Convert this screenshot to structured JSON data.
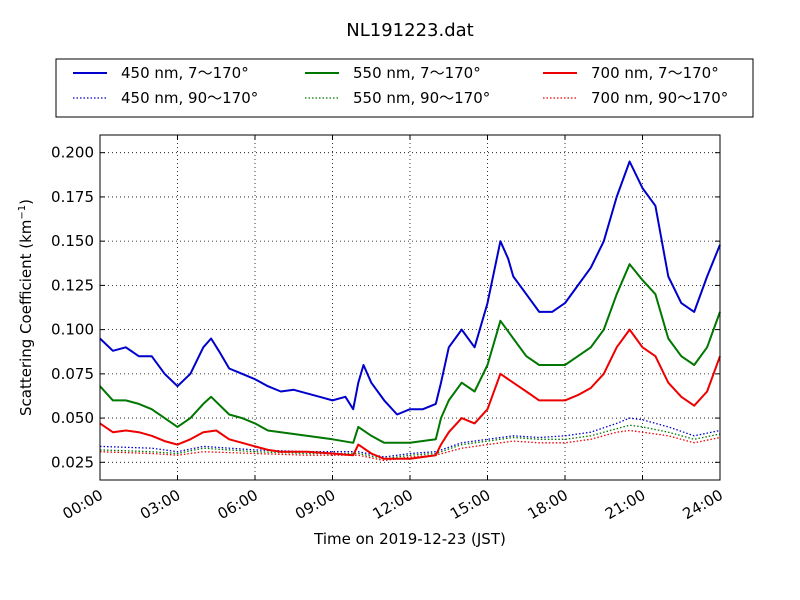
{
  "chart_data": {
    "type": "line",
    "title": "NL191223.dat",
    "xlabel": "Time on 2019-12-23 (JST)",
    "ylabel": "Scattering Coefficient (km",
    "ylabel_sup": "−1",
    "ylabel_close": ")",
    "xlim": [
      0,
      24
    ],
    "ylim": [
      0.015,
      0.21
    ],
    "x_ticks": [
      0,
      3,
      6,
      9,
      12,
      15,
      18,
      21,
      24
    ],
    "x_tick_labels": [
      "00:00",
      "03:00",
      "06:00",
      "09:00",
      "12:00",
      "15:00",
      "18:00",
      "21:00",
      "24:00"
    ],
    "y_ticks": [
      0.025,
      0.05,
      0.075,
      0.1,
      0.125,
      0.15,
      0.175,
      0.2
    ],
    "y_tick_labels": [
      "0.025",
      "0.050",
      "0.075",
      "0.100",
      "0.125",
      "0.150",
      "0.175",
      "0.200"
    ],
    "grid": true,
    "legend_position": "top",
    "series": [
      {
        "name": "450 nm, 7～170°",
        "color": "#0000cc",
        "style": "solid",
        "points": [
          [
            0,
            0.095
          ],
          [
            0.5,
            0.088
          ],
          [
            1,
            0.09
          ],
          [
            1.5,
            0.085
          ],
          [
            2,
            0.085
          ],
          [
            2.5,
            0.075
          ],
          [
            3,
            0.068
          ],
          [
            3.5,
            0.075
          ],
          [
            4,
            0.09
          ],
          [
            4.3,
            0.095
          ],
          [
            4.6,
            0.088
          ],
          [
            5,
            0.078
          ],
          [
            5.5,
            0.075
          ],
          [
            6,
            0.072
          ],
          [
            6.5,
            0.068
          ],
          [
            7,
            0.065
          ],
          [
            7.5,
            0.066
          ],
          [
            8,
            0.064
          ],
          [
            8.5,
            0.062
          ],
          [
            9,
            0.06
          ],
          [
            9.5,
            0.062
          ],
          [
            9.8,
            0.055
          ],
          [
            10,
            0.07
          ],
          [
            10.2,
            0.08
          ],
          [
            10.5,
            0.07
          ],
          [
            11,
            0.06
          ],
          [
            11.5,
            0.052
          ],
          [
            12,
            0.055
          ],
          [
            12.5,
            0.055
          ],
          [
            13,
            0.058
          ],
          [
            13.2,
            0.07
          ],
          [
            13.5,
            0.09
          ],
          [
            14,
            0.1
          ],
          [
            14.5,
            0.09
          ],
          [
            15,
            0.115
          ],
          [
            15.5,
            0.15
          ],
          [
            15.8,
            0.14
          ],
          [
            16,
            0.13
          ],
          [
            16.5,
            0.12
          ],
          [
            17,
            0.11
          ],
          [
            17.5,
            0.11
          ],
          [
            18,
            0.115
          ],
          [
            18.5,
            0.125
          ],
          [
            19,
            0.135
          ],
          [
            19.5,
            0.15
          ],
          [
            20,
            0.175
          ],
          [
            20.5,
            0.195
          ],
          [
            21,
            0.18
          ],
          [
            21.5,
            0.17
          ],
          [
            22,
            0.13
          ],
          [
            22.5,
            0.115
          ],
          [
            23,
            0.11
          ],
          [
            23.5,
            0.13
          ],
          [
            24,
            0.148
          ]
        ]
      },
      {
        "name": "450 nm, 90～170°",
        "color": "#0000cc",
        "style": "dotted",
        "points": [
          [
            0,
            0.034
          ],
          [
            2,
            0.033
          ],
          [
            3,
            0.031
          ],
          [
            4,
            0.034
          ],
          [
            6,
            0.032
          ],
          [
            8,
            0.031
          ],
          [
            10,
            0.031
          ],
          [
            11,
            0.028
          ],
          [
            12,
            0.03
          ],
          [
            13,
            0.031
          ],
          [
            14,
            0.036
          ],
          [
            15,
            0.038
          ],
          [
            16,
            0.04
          ],
          [
            17,
            0.039
          ],
          [
            18,
            0.04
          ],
          [
            19,
            0.042
          ],
          [
            20,
            0.047
          ],
          [
            20.5,
            0.05
          ],
          [
            21,
            0.049
          ],
          [
            22,
            0.045
          ],
          [
            23,
            0.04
          ],
          [
            24,
            0.043
          ]
        ]
      },
      {
        "name": "550 nm, 7～170°",
        "color": "#007700",
        "style": "solid",
        "points": [
          [
            0,
            0.068
          ],
          [
            0.5,
            0.06
          ],
          [
            1,
            0.06
          ],
          [
            1.5,
            0.058
          ],
          [
            2,
            0.055
          ],
          [
            2.5,
            0.05
          ],
          [
            3,
            0.045
          ],
          [
            3.5,
            0.05
          ],
          [
            4,
            0.058
          ],
          [
            4.3,
            0.062
          ],
          [
            5,
            0.052
          ],
          [
            5.5,
            0.05
          ],
          [
            6,
            0.047
          ],
          [
            6.5,
            0.043
          ],
          [
            7,
            0.042
          ],
          [
            8,
            0.04
          ],
          [
            9,
            0.038
          ],
          [
            9.8,
            0.036
          ],
          [
            10,
            0.045
          ],
          [
            10.5,
            0.04
          ],
          [
            11,
            0.036
          ],
          [
            12,
            0.036
          ],
          [
            13,
            0.038
          ],
          [
            13.2,
            0.05
          ],
          [
            13.5,
            0.06
          ],
          [
            14,
            0.07
          ],
          [
            14.5,
            0.065
          ],
          [
            15,
            0.08
          ],
          [
            15.5,
            0.105
          ],
          [
            16,
            0.095
          ],
          [
            16.5,
            0.085
          ],
          [
            17,
            0.08
          ],
          [
            18,
            0.08
          ],
          [
            18.5,
            0.085
          ],
          [
            19,
            0.09
          ],
          [
            19.5,
            0.1
          ],
          [
            20,
            0.12
          ],
          [
            20.5,
            0.137
          ],
          [
            21,
            0.128
          ],
          [
            21.5,
            0.12
          ],
          [
            22,
            0.095
          ],
          [
            22.5,
            0.085
          ],
          [
            23,
            0.08
          ],
          [
            23.5,
            0.09
          ],
          [
            24,
            0.11
          ]
        ]
      },
      {
        "name": "550 nm, 90～170°",
        "color": "#007700",
        "style": "dotted",
        "points": [
          [
            0,
            0.032
          ],
          [
            2,
            0.031
          ],
          [
            3,
            0.03
          ],
          [
            4,
            0.033
          ],
          [
            6,
            0.031
          ],
          [
            8,
            0.03
          ],
          [
            10,
            0.03
          ],
          [
            11,
            0.027
          ],
          [
            12,
            0.029
          ],
          [
            13,
            0.03
          ],
          [
            14,
            0.035
          ],
          [
            15,
            0.037
          ],
          [
            16,
            0.039
          ],
          [
            17,
            0.038
          ],
          [
            18,
            0.038
          ],
          [
            19,
            0.04
          ],
          [
            20,
            0.044
          ],
          [
            20.5,
            0.046
          ],
          [
            21,
            0.045
          ],
          [
            22,
            0.042
          ],
          [
            23,
            0.038
          ],
          [
            24,
            0.041
          ]
        ]
      },
      {
        "name": "700 nm, 7～170°",
        "color": "#ee0000",
        "style": "solid",
        "points": [
          [
            0,
            0.047
          ],
          [
            0.5,
            0.042
          ],
          [
            1,
            0.043
          ],
          [
            1.5,
            0.042
          ],
          [
            2,
            0.04
          ],
          [
            2.5,
            0.037
          ],
          [
            3,
            0.035
          ],
          [
            3.5,
            0.038
          ],
          [
            4,
            0.042
          ],
          [
            4.5,
            0.043
          ],
          [
            5,
            0.038
          ],
          [
            5.5,
            0.036
          ],
          [
            6,
            0.034
          ],
          [
            6.5,
            0.032
          ],
          [
            7,
            0.031
          ],
          [
            8,
            0.031
          ],
          [
            9,
            0.03
          ],
          [
            9.8,
            0.029
          ],
          [
            10,
            0.035
          ],
          [
            10.5,
            0.03
          ],
          [
            11,
            0.027
          ],
          [
            12,
            0.027
          ],
          [
            13,
            0.029
          ],
          [
            13.2,
            0.035
          ],
          [
            13.5,
            0.042
          ],
          [
            14,
            0.05
          ],
          [
            14.5,
            0.047
          ],
          [
            15,
            0.055
          ],
          [
            15.5,
            0.075
          ],
          [
            16,
            0.07
          ],
          [
            16.5,
            0.065
          ],
          [
            17,
            0.06
          ],
          [
            18,
            0.06
          ],
          [
            18.5,
            0.063
          ],
          [
            19,
            0.067
          ],
          [
            19.5,
            0.075
          ],
          [
            20,
            0.09
          ],
          [
            20.5,
            0.1
          ],
          [
            21,
            0.09
          ],
          [
            21.5,
            0.085
          ],
          [
            22,
            0.07
          ],
          [
            22.5,
            0.062
          ],
          [
            23,
            0.057
          ],
          [
            23.5,
            0.065
          ],
          [
            24,
            0.085
          ]
        ]
      },
      {
        "name": "700 nm, 90～170°",
        "color": "#ee0000",
        "style": "dotted",
        "points": [
          [
            0,
            0.031
          ],
          [
            2,
            0.03
          ],
          [
            3,
            0.029
          ],
          [
            4,
            0.031
          ],
          [
            6,
            0.03
          ],
          [
            8,
            0.029
          ],
          [
            10,
            0.029
          ],
          [
            11,
            0.026
          ],
          [
            12,
            0.028
          ],
          [
            13,
            0.029
          ],
          [
            14,
            0.033
          ],
          [
            15,
            0.035
          ],
          [
            16,
            0.037
          ],
          [
            17,
            0.036
          ],
          [
            18,
            0.036
          ],
          [
            19,
            0.038
          ],
          [
            20,
            0.042
          ],
          [
            20.5,
            0.043
          ],
          [
            21,
            0.042
          ],
          [
            22,
            0.04
          ],
          [
            23,
            0.036
          ],
          [
            24,
            0.039
          ]
        ]
      }
    ]
  }
}
